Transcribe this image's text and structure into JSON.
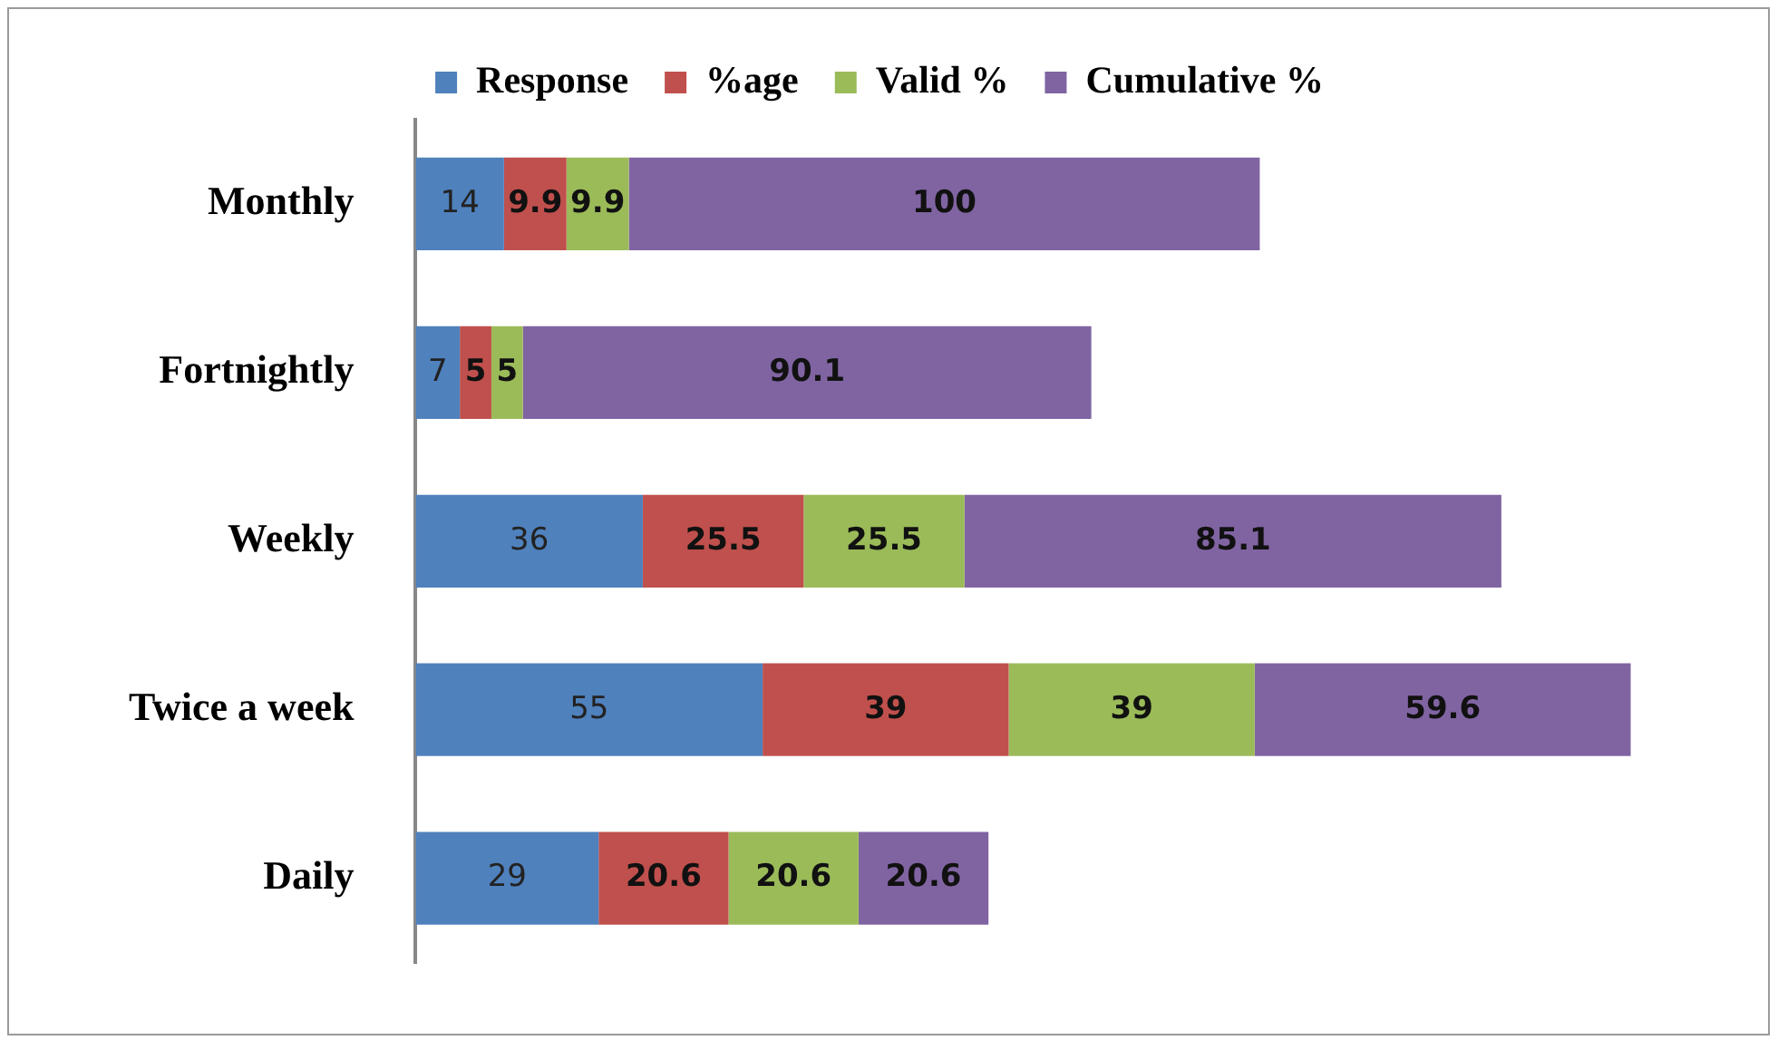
{
  "chart_data": {
    "type": "bar",
    "orientation": "horizontal",
    "stacked": true,
    "categories": [
      "Monthly",
      "Fortnightly",
      "Weekly",
      "Twice a week",
      "Daily"
    ],
    "series": [
      {
        "name": "Response",
        "color": "#4f81bd",
        "values": [
          14,
          7,
          36,
          55,
          29
        ]
      },
      {
        "name": "%age",
        "color": "#c0504d",
        "values": [
          9.9,
          5,
          25.5,
          39,
          20.6
        ]
      },
      {
        "name": "Valid %",
        "color": "#9bbb59",
        "values": [
          9.9,
          5,
          25.5,
          39,
          20.6
        ]
      },
      {
        "name": "Cumulative %",
        "color": "#8064a2",
        "values": [
          100,
          90.1,
          85.1,
          59.6,
          20.6
        ]
      }
    ],
    "data_labels": true,
    "legend": "top",
    "grid": false,
    "tick_labels": "y"
  }
}
